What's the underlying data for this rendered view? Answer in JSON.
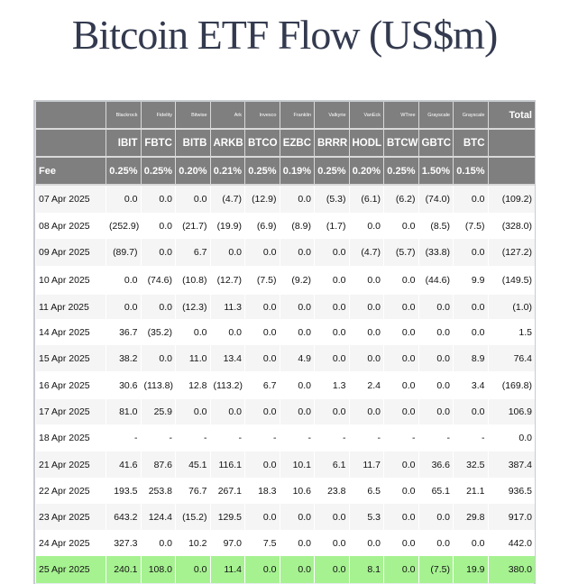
{
  "title": "Bitcoin ETF Flow (US$m)",
  "sponsors": [
    "Blackrock",
    "Fidelity",
    "Bitwise",
    "Ark",
    "Invesco",
    "Franklin",
    "Valkyrie",
    "VanEck",
    "WTree",
    "Grayscale",
    "Grayscale"
  ],
  "total_label": "Total",
  "tickers": [
    "IBIT",
    "FBTC",
    "BITB",
    "ARKB",
    "BTCO",
    "EZBC",
    "BRRR",
    "HODL",
    "BTCW",
    "GBTC",
    "BTC"
  ],
  "fee_label": "Fee",
  "fees": [
    "0.25%",
    "0.25%",
    "0.20%",
    "0.21%",
    "0.25%",
    "0.19%",
    "0.25%",
    "0.20%",
    "0.25%",
    "1.50%",
    "0.15%"
  ],
  "colors": {
    "header_bg": "#7f7f7f",
    "negative": "#d10000",
    "highlight": "#a6f291"
  },
  "rows": [
    {
      "date": "07 Apr 2025",
      "values": [
        "0.0",
        "0.0",
        "0.0",
        "(4.7)",
        "(12.9)",
        "0.0",
        "(5.3)",
        "(6.1)",
        "(6.2)",
        "(74.0)",
        "0.0"
      ],
      "total": "(109.2)"
    },
    {
      "date": "08 Apr 2025",
      "values": [
        "(252.9)",
        "0.0",
        "(21.7)",
        "(19.9)",
        "(6.9)",
        "(8.9)",
        "(1.7)",
        "0.0",
        "0.0",
        "(8.5)",
        "(7.5)"
      ],
      "total": "(328.0)"
    },
    {
      "date": "09 Apr 2025",
      "values": [
        "(89.7)",
        "0.0",
        "6.7",
        "0.0",
        "0.0",
        "0.0",
        "0.0",
        "(4.7)",
        "(5.7)",
        "(33.8)",
        "0.0"
      ],
      "total": "(127.2)"
    },
    {
      "date": "10 Apr 2025",
      "values": [
        "0.0",
        "(74.6)",
        "(10.8)",
        "(12.7)",
        "(7.5)",
        "(9.2)",
        "0.0",
        "0.0",
        "0.0",
        "(44.6)",
        "9.9"
      ],
      "total": "(149.5)"
    },
    {
      "date": "11 Apr 2025",
      "values": [
        "0.0",
        "0.0",
        "(12.3)",
        "11.3",
        "0.0",
        "0.0",
        "0.0",
        "0.0",
        "0.0",
        "0.0",
        "0.0"
      ],
      "total": "(1.0)"
    },
    {
      "date": "14 Apr 2025",
      "values": [
        "36.7",
        "(35.2)",
        "0.0",
        "0.0",
        "0.0",
        "0.0",
        "0.0",
        "0.0",
        "0.0",
        "0.0",
        "0.0"
      ],
      "total": "1.5"
    },
    {
      "date": "15 Apr 2025",
      "values": [
        "38.2",
        "0.0",
        "11.0",
        "13.4",
        "0.0",
        "4.9",
        "0.0",
        "0.0",
        "0.0",
        "0.0",
        "8.9"
      ],
      "total": "76.4"
    },
    {
      "date": "16 Apr 2025",
      "values": [
        "30.6",
        "(113.8)",
        "12.8",
        "(113.2)",
        "6.7",
        "0.0",
        "1.3",
        "2.4",
        "0.0",
        "0.0",
        "3.4"
      ],
      "total": "(169.8)"
    },
    {
      "date": "17 Apr 2025",
      "values": [
        "81.0",
        "25.9",
        "0.0",
        "0.0",
        "0.0",
        "0.0",
        "0.0",
        "0.0",
        "0.0",
        "0.0",
        "0.0"
      ],
      "total": "106.9"
    },
    {
      "date": "18 Apr 2025",
      "values": [
        "-",
        "-",
        "-",
        "-",
        "-",
        "-",
        "-",
        "-",
        "-",
        "-",
        "-"
      ],
      "total": "0.0"
    },
    {
      "date": "21 Apr 2025",
      "values": [
        "41.6",
        "87.6",
        "45.1",
        "116.1",
        "0.0",
        "10.1",
        "6.1",
        "11.7",
        "0.0",
        "36.6",
        "32.5"
      ],
      "total": "387.4"
    },
    {
      "date": "22 Apr 2025",
      "values": [
        "193.5",
        "253.8",
        "76.7",
        "267.1",
        "18.3",
        "10.6",
        "23.8",
        "6.5",
        "0.0",
        "65.1",
        "21.1"
      ],
      "total": "936.5"
    },
    {
      "date": "23 Apr 2025",
      "values": [
        "643.2",
        "124.4",
        "(15.2)",
        "129.5",
        "0.0",
        "0.0",
        "0.0",
        "5.3",
        "0.0",
        "0.0",
        "29.8"
      ],
      "total": "917.0"
    },
    {
      "date": "24 Apr 2025",
      "values": [
        "327.3",
        "0.0",
        "10.2",
        "97.0",
        "7.5",
        "0.0",
        "0.0",
        "0.0",
        "0.0",
        "0.0",
        "0.0"
      ],
      "total": "442.0"
    },
    {
      "date": "25 Apr 2025",
      "values": [
        "240.1",
        "108.0",
        "0.0",
        "11.4",
        "0.0",
        "0.0",
        "0.0",
        "8.1",
        "0.0",
        "(7.5)",
        "19.9"
      ],
      "total": "380.0",
      "highlighted": true
    }
  ]
}
